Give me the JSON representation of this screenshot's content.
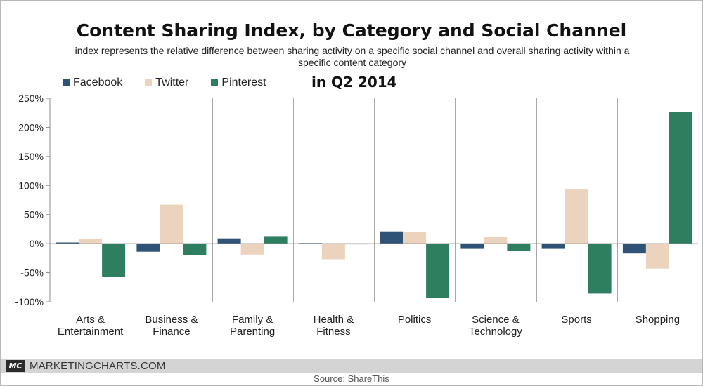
{
  "chart_data": {
    "type": "bar",
    "title": "Content Sharing Index, by Category and Social Channel",
    "subtitle": "index represents the relative difference between sharing activity on a specific social channel and overall sharing activity within a specific content category",
    "period": "in Q2 2014",
    "categories": [
      [
        "Arts &",
        "Entertainment"
      ],
      [
        "Business &",
        "Finance"
      ],
      [
        "Family &",
        "Parenting"
      ],
      [
        "Health &",
        "Fitness"
      ],
      [
        "Politics"
      ],
      [
        "Science &",
        "Technology"
      ],
      [
        "Sports"
      ],
      [
        "Shopping"
      ]
    ],
    "series": [
      {
        "name": "Facebook",
        "color": "#2e5377",
        "values": [
          2,
          -14,
          9,
          1,
          21,
          -9,
          -9,
          -17
        ]
      },
      {
        "name": "Twitter",
        "color": "#ecd3bd",
        "values": [
          8,
          67,
          -19,
          -27,
          20,
          12,
          93,
          -43
        ]
      },
      {
        "name": "Pinterest",
        "color": "#2e7e60",
        "values": [
          -57,
          -20,
          13,
          -1,
          -94,
          -12,
          -86,
          226
        ]
      }
    ],
    "ylim": [
      -100,
      250
    ],
    "yticks": [
      -100,
      -50,
      0,
      50,
      100,
      150,
      200,
      250
    ],
    "ytick_suffix": "%"
  },
  "footer": {
    "badge": "MC",
    "brand": "MARKETINGCHARTS.COM",
    "source": "Source: ShareThis"
  }
}
